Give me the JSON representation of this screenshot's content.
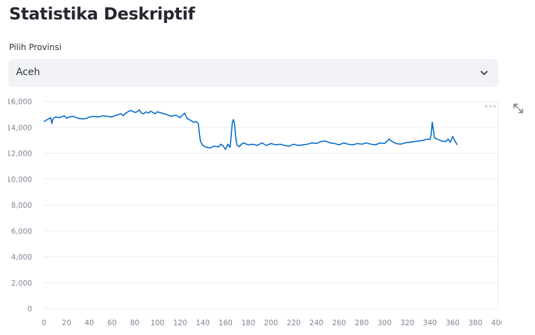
{
  "page": {
    "title": "Statistika Deskriptif"
  },
  "province_select": {
    "label": "Pilih Provinsi",
    "value": "Aceh"
  },
  "toolbar": {
    "more_icon": "more-horizontal-icon",
    "fullscreen_icon": "expand-icon"
  },
  "chart_data": {
    "type": "line",
    "title": "",
    "xlabel": "",
    "ylabel": "",
    "xlim": [
      0,
      400
    ],
    "ylim": [
      0,
      16000
    ],
    "x_ticks": [
      0,
      20,
      40,
      60,
      80,
      100,
      120,
      140,
      160,
      180,
      200,
      220,
      240,
      260,
      280,
      300,
      320,
      340,
      360,
      380,
      400
    ],
    "y_ticks": [
      0,
      2000,
      4000,
      6000,
      8000,
      10000,
      12000,
      14000,
      16000
    ],
    "x_tick_labels": [
      "0",
      "20",
      "40",
      "60",
      "80",
      "100",
      "120",
      "140",
      "160",
      "180",
      "200",
      "220",
      "240",
      "260",
      "280",
      "300",
      "320",
      "340",
      "360",
      "380",
      "400"
    ],
    "y_tick_labels": [
      "0",
      "2,000",
      "4,000",
      "6,000",
      "8,000",
      "10,000",
      "12,000",
      "14,000",
      "16,000"
    ],
    "grid": true,
    "line_color": "#0068c9",
    "series": [
      {
        "x": [
          0,
          3,
          6,
          7,
          8,
          10,
          14,
          18,
          20,
          22,
          26,
          30,
          34,
          38,
          40,
          44,
          48,
          52,
          56,
          60,
          64,
          68,
          70,
          72,
          74,
          76,
          78,
          80,
          82,
          84,
          86,
          88,
          90,
          92,
          94,
          96,
          98,
          100,
          104,
          108,
          112,
          116,
          120,
          122,
          124,
          126,
          128,
          130,
          132,
          134,
          136,
          137,
          138,
          140,
          142,
          146,
          150,
          154,
          156,
          158,
          160,
          162,
          164,
          166,
          167,
          168,
          169,
          170,
          172,
          174,
          176,
          180,
          184,
          188,
          192,
          196,
          200,
          204,
          208,
          212,
          216,
          220,
          224,
          228,
          232,
          236,
          240,
          244,
          248,
          252,
          256,
          260,
          264,
          268,
          272,
          276,
          280,
          284,
          288,
          292,
          296,
          300,
          302,
          304,
          306,
          308,
          310,
          314,
          318,
          322,
          326,
          330,
          334,
          338,
          340,
          341,
          342,
          344,
          346,
          350,
          354,
          356,
          358,
          360,
          362,
          364
        ],
        "y": [
          14450,
          14600,
          14750,
          14300,
          14650,
          14800,
          14750,
          14900,
          14700,
          14800,
          14850,
          14700,
          14650,
          14700,
          14800,
          14850,
          14800,
          14900,
          14850,
          14800,
          14950,
          15050,
          14900,
          15100,
          15200,
          15300,
          15250,
          15150,
          15200,
          15350,
          15100,
          15050,
          15200,
          15100,
          15250,
          15150,
          15050,
          15200,
          15100,
          15000,
          14850,
          14950,
          14750,
          14950,
          15100,
          14700,
          14600,
          14500,
          14400,
          14450,
          14300,
          13500,
          12900,
          12600,
          12500,
          12400,
          12550,
          12500,
          12700,
          12550,
          12300,
          12700,
          12450,
          14400,
          14600,
          14200,
          13200,
          12650,
          12500,
          12700,
          12800,
          12650,
          12700,
          12600,
          12800,
          12600,
          12750,
          12650,
          12700,
          12600,
          12550,
          12700,
          12600,
          12650,
          12700,
          12800,
          12750,
          12900,
          12950,
          12800,
          12750,
          12650,
          12800,
          12700,
          12650,
          12750,
          12700,
          12800,
          12700,
          12650,
          12800,
          12750,
          12900,
          13100,
          12950,
          12850,
          12750,
          12700,
          12800,
          12850,
          12900,
          12950,
          13000,
          13100,
          13050,
          13400,
          14400,
          13200,
          13100,
          12950,
          12900,
          13100,
          12850,
          13300,
          12950,
          12650
        ]
      }
    ]
  }
}
